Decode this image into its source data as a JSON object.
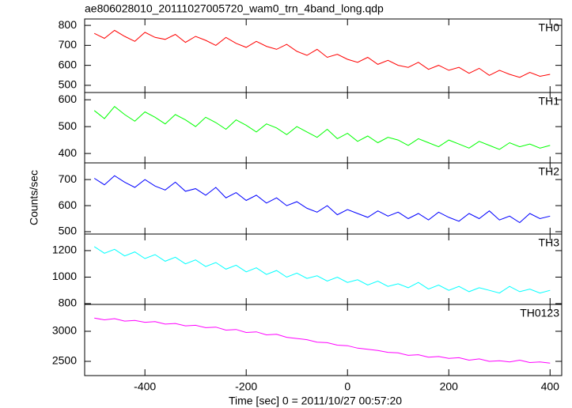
{
  "chart_data": [
    {
      "type": "line",
      "title": "ae806028010_20111027005720_wam0_trn_4band_long.qdp",
      "x": [
        -500,
        -480,
        -460,
        -440,
        -420,
        -400,
        -380,
        -360,
        -340,
        -320,
        -300,
        -280,
        -260,
        -240,
        -220,
        -200,
        -180,
        -160,
        -140,
        -120,
        -100,
        -80,
        -60,
        -40,
        -20,
        0,
        20,
        40,
        60,
        80,
        100,
        120,
        140,
        160,
        180,
        200,
        220,
        240,
        260,
        280,
        300,
        320,
        340,
        360,
        380,
        400
      ],
      "series": [
        {
          "name": "TH0",
          "color": "#ff0000",
          "values": [
            760,
            735,
            775,
            745,
            720,
            765,
            740,
            730,
            755,
            715,
            745,
            725,
            700,
            740,
            710,
            690,
            720,
            695,
            680,
            705,
            670,
            650,
            680,
            640,
            655,
            630,
            615,
            640,
            605,
            625,
            600,
            590,
            615,
            580,
            600,
            575,
            590,
            560,
            585,
            550,
            575,
            555,
            540,
            565,
            545,
            555
          ]
        }
      ],
      "xlim": [
        -519,
        423
      ],
      "xticks": [
        -400,
        -200,
        0,
        200,
        400
      ],
      "ylim": [
        464,
        832
      ],
      "yticks": [
        500,
        600,
        700,
        800
      ]
    },
    {
      "type": "line",
      "x": [
        -500,
        -480,
        -460,
        -440,
        -420,
        -400,
        -380,
        -360,
        -340,
        -320,
        -300,
        -280,
        -260,
        -240,
        -220,
        -200,
        -180,
        -160,
        -140,
        -120,
        -100,
        -80,
        -60,
        -40,
        -20,
        0,
        20,
        40,
        60,
        80,
        100,
        120,
        140,
        160,
        180,
        200,
        220,
        240,
        260,
        280,
        300,
        320,
        340,
        360,
        380,
        400
      ],
      "series": [
        {
          "name": "TH1",
          "color": "#00ff00",
          "values": [
            560,
            530,
            575,
            545,
            520,
            555,
            535,
            510,
            545,
            525,
            500,
            535,
            515,
            490,
            525,
            505,
            480,
            510,
            495,
            470,
            500,
            480,
            460,
            490,
            455,
            475,
            445,
            465,
            440,
            460,
            450,
            430,
            455,
            440,
            425,
            450,
            435,
            420,
            445,
            430,
            415,
            440,
            425,
            435,
            420,
            430
          ]
        }
      ],
      "xlim": [
        -519,
        423
      ],
      "xticks": [
        -400,
        -200,
        0,
        200,
        400
      ],
      "ylim": [
        365,
        627
      ],
      "yticks": [
        400,
        500,
        600
      ]
    },
    {
      "type": "line",
      "ylabel": "Counts/sec",
      "x": [
        -500,
        -480,
        -460,
        -440,
        -420,
        -400,
        -380,
        -360,
        -340,
        -320,
        -300,
        -280,
        -260,
        -240,
        -220,
        -200,
        -180,
        -160,
        -140,
        -120,
        -100,
        -80,
        -60,
        -40,
        -20,
        0,
        20,
        40,
        60,
        80,
        100,
        120,
        140,
        160,
        180,
        200,
        220,
        240,
        260,
        280,
        300,
        320,
        340,
        360,
        380,
        400
      ],
      "series": [
        {
          "name": "TH2",
          "color": "#0000ff",
          "values": [
            705,
            680,
            715,
            690,
            670,
            700,
            675,
            660,
            690,
            655,
            665,
            640,
            670,
            630,
            650,
            620,
            640,
            610,
            630,
            600,
            615,
            590,
            575,
            600,
            565,
            585,
            570,
            555,
            580,
            560,
            575,
            550,
            570,
            545,
            575,
            555,
            540,
            570,
            550,
            580,
            545,
            560,
            535,
            570,
            550,
            560
          ]
        }
      ],
      "xlim": [
        -519,
        423
      ],
      "xticks": [
        -400,
        -200,
        0,
        200,
        400
      ],
      "ylim": [
        491,
        764
      ],
      "yticks": [
        500,
        600,
        700
      ]
    },
    {
      "type": "line",
      "x": [
        -500,
        -480,
        -460,
        -440,
        -420,
        -400,
        -380,
        -360,
        -340,
        -320,
        -300,
        -280,
        -260,
        -240,
        -220,
        -200,
        -180,
        -160,
        -140,
        -120,
        -100,
        -80,
        -60,
        -40,
        -20,
        0,
        20,
        40,
        60,
        80,
        100,
        120,
        140,
        160,
        180,
        200,
        220,
        240,
        260,
        280,
        300,
        320,
        340,
        360,
        380,
        400
      ],
      "series": [
        {
          "name": "TH3",
          "color": "#00ffff",
          "values": [
            1230,
            1180,
            1210,
            1160,
            1190,
            1140,
            1170,
            1120,
            1150,
            1100,
            1130,
            1080,
            1110,
            1060,
            1090,
            1040,
            1070,
            1020,
            1050,
            1000,
            1030,
            990,
            1010,
            970,
            1000,
            960,
            980,
            940,
            970,
            930,
            950,
            920,
            960,
            910,
            940,
            900,
            930,
            890,
            920,
            900,
            880,
            930,
            890,
            910,
            880,
            900
          ]
        }
      ],
      "xlim": [
        -519,
        423
      ],
      "xticks": [
        -400,
        -200,
        0,
        200,
        400
      ],
      "ylim": [
        794,
        1325
      ],
      "yticks": [
        800,
        1000,
        1200
      ]
    },
    {
      "type": "line",
      "xlabel": "Time [sec] 0 = 2011/10/27 00:57:20",
      "x": [
        -500,
        -480,
        -460,
        -440,
        -420,
        -400,
        -380,
        -360,
        -340,
        -320,
        -300,
        -280,
        -260,
        -240,
        -220,
        -200,
        -180,
        -160,
        -140,
        -120,
        -100,
        -80,
        -60,
        -40,
        -20,
        0,
        20,
        40,
        60,
        80,
        100,
        120,
        140,
        160,
        180,
        200,
        220,
        240,
        260,
        280,
        300,
        320,
        340,
        360,
        380,
        400
      ],
      "series": [
        {
          "name": "TH0123",
          "color": "#ff00ff",
          "values": [
            3220,
            3190,
            3210,
            3170,
            3180,
            3150,
            3160,
            3120,
            3130,
            3090,
            3100,
            3060,
            3070,
            3020,
            3030,
            2980,
            2990,
            2940,
            2950,
            2900,
            2880,
            2860,
            2820,
            2810,
            2770,
            2760,
            2720,
            2700,
            2680,
            2650,
            2640,
            2600,
            2610,
            2570,
            2580,
            2550,
            2560,
            2520,
            2540,
            2500,
            2510,
            2490,
            2520,
            2480,
            2490,
            2470
          ]
        }
      ],
      "xlim": [
        -519,
        423
      ],
      "xticks": [
        -400,
        -200,
        0,
        200,
        400
      ],
      "ylim": [
        2263,
        3447
      ],
      "yticks": [
        2500,
        3000
      ]
    }
  ]
}
